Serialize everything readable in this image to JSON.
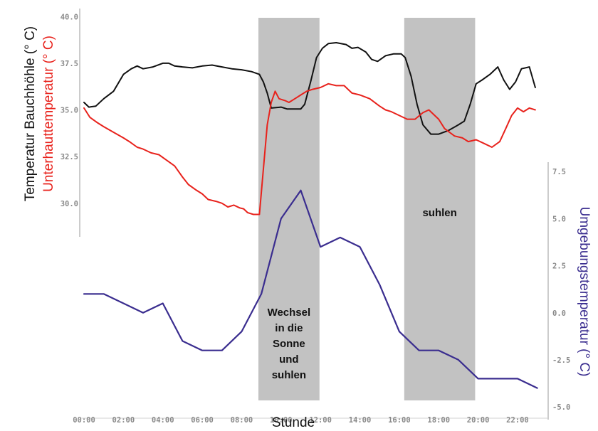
{
  "chart_data": {
    "type": "line",
    "xlabel": "Stunde",
    "x_ticks": [
      "00:00",
      "02:00",
      "04:00",
      "06:00",
      "08:00",
      "10:00",
      "12:00",
      "14:00",
      "16:00",
      "18:00",
      "20:00",
      "22:00"
    ],
    "y_left": {
      "ylim": [
        28.2,
        40.2
      ],
      "ticks": [
        "30.0",
        "32.5",
        "35.0",
        "37.5",
        "40.0"
      ],
      "labels": [
        {
          "text": "Temperatur Bauchhöhle (° C)",
          "color": "#111111"
        },
        {
          "text": "Unterhauttemperatur (° C)",
          "color": "#e8221c"
        }
      ]
    },
    "y_right": {
      "ylim": [
        -5.6,
        8.0
      ],
      "ticks": [
        "7.5",
        "5.0",
        "2.5",
        "0.0",
        "-2.5",
        "-5.0"
      ],
      "label": {
        "text": "Umgebungstemperatur (° C)",
        "color": "#3a2d8f"
      }
    },
    "shaded_regions": [
      {
        "x": [
          8.85,
          11.95
        ],
        "label": [
          "Wechsel",
          "in die",
          "Sonne",
          "und",
          "suhlen"
        ]
      },
      {
        "x": [
          16.25,
          19.85
        ],
        "label": [
          "suhlen"
        ]
      }
    ],
    "series": [
      {
        "axis": "left",
        "color": "#111111",
        "x": [
          0,
          0.25,
          0.6,
          1,
          1.5,
          2,
          2.4,
          2.7,
          3,
          3.5,
          4,
          4.3,
          4.6,
          5,
          5.5,
          6,
          6.5,
          7,
          7.5,
          8,
          8.5,
          8.9,
          9.1,
          9.3,
          9.5,
          10,
          10.3,
          10.6,
          11,
          11.2,
          11.5,
          11.8,
          12.1,
          12.4,
          12.8,
          13.3,
          13.6,
          13.9,
          14.3,
          14.6,
          14.9,
          15.3,
          15.7,
          16.1,
          16.3,
          16.6,
          16.9,
          17.2,
          17.6,
          18,
          18.5,
          19,
          19.3,
          19.6,
          19.9,
          20.2,
          20.6,
          21,
          21.3,
          21.6,
          21.9,
          22.2,
          22.6,
          22.9
        ],
        "y": [
          35.4,
          35.15,
          35.2,
          35.6,
          36.0,
          36.9,
          37.2,
          37.35,
          37.2,
          37.3,
          37.5,
          37.5,
          37.35,
          37.3,
          37.25,
          37.35,
          37.4,
          37.3,
          37.2,
          37.15,
          37.05,
          36.9,
          36.5,
          35.9,
          35.1,
          35.15,
          35.05,
          35.05,
          35.05,
          35.3,
          36.5,
          37.8,
          38.3,
          38.55,
          38.6,
          38.5,
          38.3,
          38.35,
          38.1,
          37.7,
          37.6,
          37.9,
          38.0,
          38.0,
          37.8,
          36.8,
          35.3,
          34.2,
          33.7,
          33.7,
          33.9,
          34.2,
          34.4,
          35.3,
          36.4,
          36.6,
          36.9,
          37.3,
          36.6,
          36.1,
          36.5,
          37.2,
          37.3,
          36.2
        ]
      },
      {
        "axis": "left",
        "color": "#e8221c",
        "x": [
          0,
          0.3,
          0.7,
          1,
          1.5,
          2,
          2.3,
          2.7,
          3,
          3.4,
          3.8,
          4.2,
          4.6,
          5,
          5.3,
          5.7,
          6,
          6.3,
          6.7,
          7,
          7.3,
          7.6,
          7.9,
          8.1,
          8.3,
          8.6,
          8.9,
          9.1,
          9.3,
          9.5,
          9.7,
          9.9,
          10.2,
          10.4,
          10.7,
          11,
          11.3,
          11.6,
          12,
          12.4,
          12.8,
          13.2,
          13.6,
          14,
          14.5,
          15,
          15.3,
          15.6,
          16,
          16.4,
          16.8,
          17.2,
          17.5,
          18,
          18.3,
          18.8,
          19.2,
          19.5,
          19.9,
          20.3,
          20.7,
          21.1,
          21.4,
          21.7,
          22,
          22.3,
          22.6,
          22.9
        ],
        "y": [
          35.1,
          34.6,
          34.3,
          34.1,
          33.8,
          33.5,
          33.3,
          33.0,
          32.9,
          32.7,
          32.6,
          32.3,
          32.0,
          31.4,
          31.0,
          30.7,
          30.5,
          30.2,
          30.1,
          30.0,
          29.8,
          29.9,
          29.75,
          29.7,
          29.5,
          29.4,
          29.4,
          31.8,
          34.2,
          35.4,
          36.0,
          35.6,
          35.5,
          35.4,
          35.6,
          35.8,
          36.0,
          36.1,
          36.2,
          36.4,
          36.3,
          36.3,
          35.9,
          35.8,
          35.6,
          35.2,
          35.0,
          34.9,
          34.7,
          34.5,
          34.5,
          34.85,
          35.0,
          34.5,
          34.0,
          33.6,
          33.5,
          33.3,
          33.4,
          33.2,
          33.0,
          33.3,
          34.0,
          34.7,
          35.1,
          34.9,
          35.1,
          35.0
        ]
      },
      {
        "axis": "right",
        "color": "#3a2d8f",
        "x": [
          0,
          1,
          2,
          3,
          4,
          5,
          6,
          7,
          8,
          9,
          10,
          11,
          12,
          13,
          14,
          15,
          16,
          17,
          18,
          19,
          20,
          21,
          22,
          23
        ],
        "y": [
          1,
          1,
          0.5,
          0,
          0.5,
          -1.5,
          -2,
          -2,
          -1,
          1,
          5,
          6.5,
          3.5,
          4,
          3.5,
          1.5,
          -1,
          -2,
          -2,
          -2.5,
          -3.5,
          -3.5,
          -3.5,
          -4
        ]
      }
    ]
  }
}
